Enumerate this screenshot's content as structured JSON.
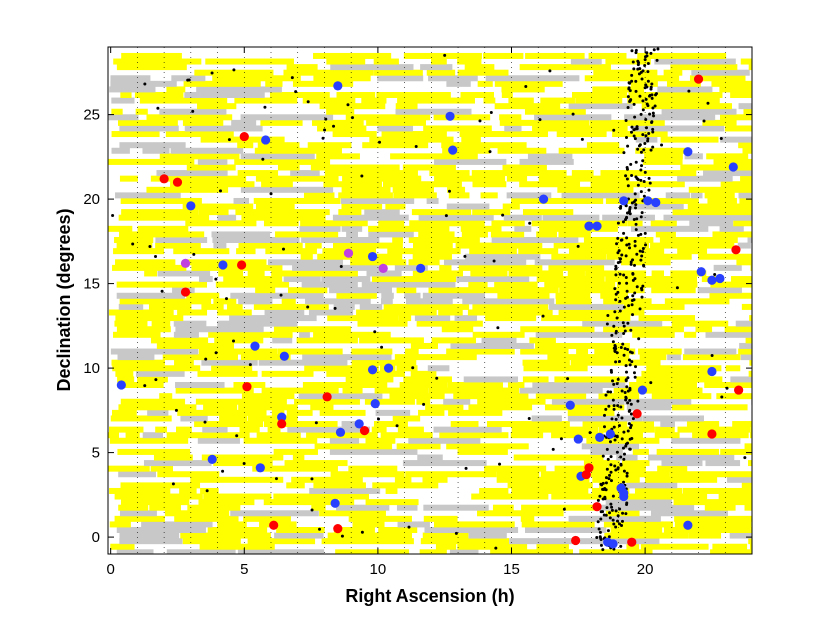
{
  "chart_data": {
    "type": "scatter",
    "xlabel": "Right Ascension (h)",
    "ylabel": "Declination (degrees)",
    "xlim": [
      -0.1,
      24
    ],
    "ylim": [
      -1,
      29
    ],
    "xticks": [
      0,
      5,
      10,
      15,
      20
    ],
    "yticks": [
      0,
      5,
      10,
      15,
      20,
      25
    ],
    "grid": "vertical dotted lines every 1 h",
    "colors": {
      "coverage_primary": "#ffff00",
      "coverage_secondary": "#c8c8c8",
      "blue_points": "#2a40ff",
      "red_points": "#ff0000",
      "magenta_points": "#c040e0",
      "black_points": "#000000"
    },
    "coverage_strips_note": "horizontal coverage strips approx. every 0.33 degrees across full RA range; dense yellow/gray fill",
    "series": [
      {
        "color_key": "blue_points",
        "points": [
          [
            0.4,
            9.0
          ],
          [
            3.0,
            19.6
          ],
          [
            3.8,
            4.6
          ],
          [
            4.2,
            16.1
          ],
          [
            5.4,
            11.3
          ],
          [
            5.6,
            4.1
          ],
          [
            5.8,
            23.5
          ],
          [
            6.4,
            7.1
          ],
          [
            6.5,
            10.7
          ],
          [
            8.4,
            2.0
          ],
          [
            8.5,
            26.7
          ],
          [
            8.6,
            6.2
          ],
          [
            9.3,
            6.7
          ],
          [
            9.8,
            9.9
          ],
          [
            9.8,
            16.6
          ],
          [
            9.9,
            7.9
          ],
          [
            10.4,
            10.0
          ],
          [
            11.6,
            15.9
          ],
          [
            12.7,
            24.9
          ],
          [
            12.8,
            22.9
          ],
          [
            16.2,
            20.0
          ],
          [
            17.2,
            7.8
          ],
          [
            17.5,
            5.8
          ],
          [
            17.6,
            3.6
          ],
          [
            17.9,
            18.4
          ],
          [
            18.2,
            18.4
          ],
          [
            18.3,
            5.9
          ],
          [
            18.6,
            -0.3
          ],
          [
            18.7,
            6.1
          ],
          [
            18.8,
            -0.4
          ],
          [
            19.1,
            2.9
          ],
          [
            19.2,
            2.4
          ],
          [
            19.2,
            2.6
          ],
          [
            19.2,
            19.9
          ],
          [
            19.9,
            8.7
          ],
          [
            20.1,
            19.9
          ],
          [
            20.4,
            19.8
          ],
          [
            21.6,
            0.7
          ],
          [
            21.6,
            22.8
          ],
          [
            22.1,
            15.7
          ],
          [
            22.5,
            15.2
          ],
          [
            22.5,
            9.8
          ],
          [
            22.8,
            15.3
          ],
          [
            23.3,
            21.9
          ]
        ]
      },
      {
        "color_key": "red_points",
        "points": [
          [
            2.0,
            21.2
          ],
          [
            2.5,
            21.0
          ],
          [
            2.8,
            14.5
          ],
          [
            4.9,
            16.1
          ],
          [
            5.0,
            23.7
          ],
          [
            5.1,
            8.9
          ],
          [
            6.1,
            0.7
          ],
          [
            6.4,
            6.7
          ],
          [
            8.1,
            8.3
          ],
          [
            8.5,
            0.5
          ],
          [
            9.5,
            6.3
          ],
          [
            17.4,
            -0.2
          ],
          [
            17.8,
            3.7
          ],
          [
            17.9,
            4.1
          ],
          [
            18.2,
            1.8
          ],
          [
            19.5,
            -0.3
          ],
          [
            19.7,
            7.3
          ],
          [
            22.0,
            27.1
          ],
          [
            22.5,
            6.1
          ],
          [
            23.4,
            17.0
          ],
          [
            23.5,
            8.7
          ]
        ]
      },
      {
        "color_key": "magenta_points",
        "points": [
          [
            2.8,
            16.2
          ],
          [
            8.9,
            16.8
          ],
          [
            10.2,
            15.9
          ]
        ]
      }
    ],
    "black_points_note": "small black dots scattered sparsely, densely concentrated along a narrow band near RA 18.5-20 h"
  }
}
